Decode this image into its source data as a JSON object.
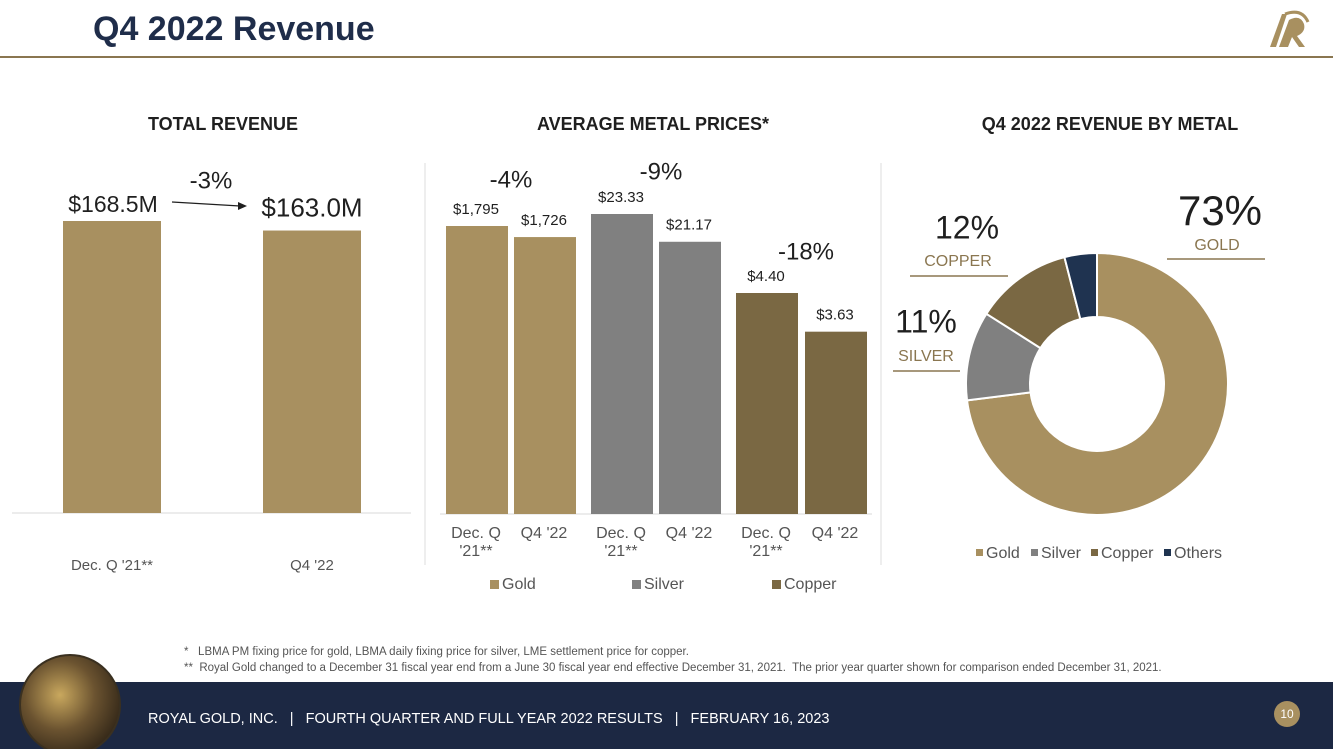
{
  "header": {
    "title": "Q4 2022 Revenue"
  },
  "chart_data": [
    {
      "type": "bar",
      "title": "TOTAL REVENUE",
      "categories": [
        "Dec. Q '21**",
        "Q4 '22"
      ],
      "values": [
        168.5,
        163.0
      ],
      "value_labels": [
        "$168.5M",
        "$163.0M"
      ],
      "color": "#a89060",
      "annotation": "-3%"
    },
    {
      "type": "grouped-bar",
      "title": "AVERAGE METAL PRICES*",
      "categories": [
        "Dec. Q '21**",
        "Q4 '22"
      ],
      "series": [
        {
          "name": "Gold",
          "color": "#a89060",
          "values": [
            1795,
            1726
          ],
          "value_labels": [
            "$1,795",
            "$1,726"
          ],
          "change": "-4%"
        },
        {
          "name": "Silver",
          "color": "#808080",
          "values": [
            23.33,
            21.17
          ],
          "value_labels": [
            "$23.33",
            "$21.17"
          ],
          "change": "-9%"
        },
        {
          "name": "Copper",
          "color": "#7a6843",
          "values": [
            4.4,
            3.63
          ],
          "value_labels": [
            "$4.40",
            "$3.63"
          ],
          "change": "-18%"
        }
      ]
    },
    {
      "type": "donut",
      "title": "Q4 2022 REVENUE BY METAL",
      "categories": [
        "Gold",
        "Silver",
        "Copper",
        "Others"
      ],
      "values": [
        73,
        11,
        12,
        4
      ],
      "value_labels": [
        "73%",
        "11%",
        "12%",
        null
      ],
      "slice_labels": [
        "GOLD",
        "SILVER",
        "COPPER",
        null
      ],
      "colors": [
        "#a89060",
        "#808080",
        "#7a6843",
        "#1f3350"
      ]
    }
  ],
  "footnotes": [
    "*   LBMA PM fixing price for gold, LBMA daily fixing price for silver, LME settlement price for copper.",
    "**  Royal Gold changed to a December 31 fiscal year end from a June 30 fiscal year end effective December 31, 2021.  The prior year quarter shown for comparison ended December 31, 2021."
  ],
  "footer": {
    "text": "ROYAL GOLD, INC.   |   FOURTH QUARTER AND FULL YEAR 2022 RESULTS   |   FEBRUARY 16, 2023",
    "page": "10"
  }
}
